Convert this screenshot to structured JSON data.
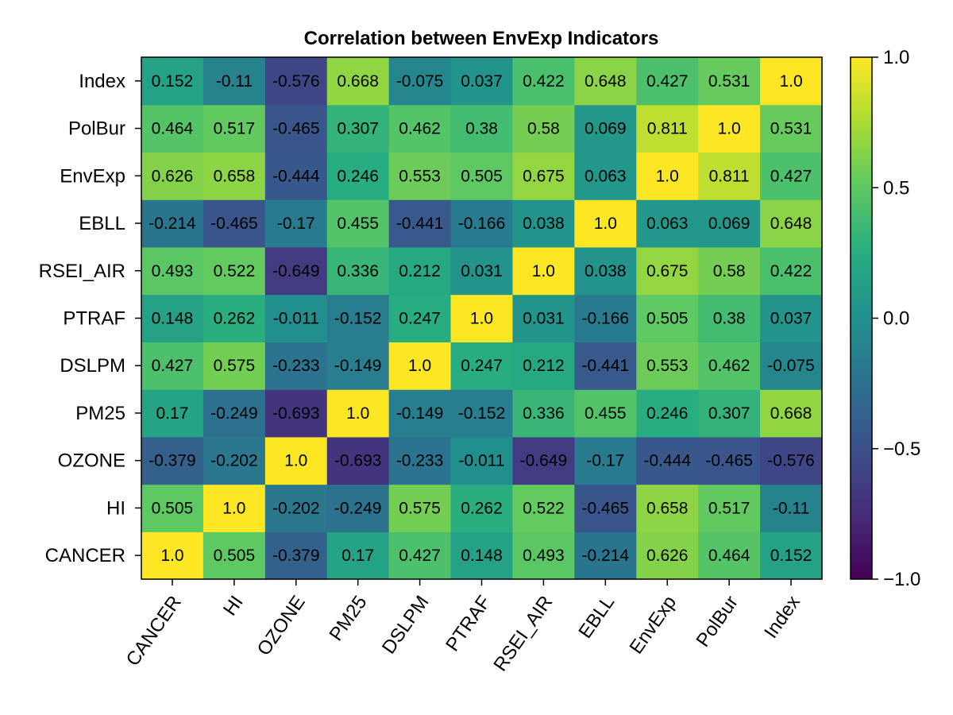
{
  "chart_data": {
    "type": "heatmap",
    "title": "Correlation between EnvExp Indicators",
    "categories": [
      "CANCER",
      "HI",
      "OZONE",
      "PM25",
      "DSLPM",
      "PTRAF",
      "RSEI_AIR",
      "EBLL",
      "EnvExp",
      "PolBur",
      "Index"
    ],
    "matrix": [
      [
        "1.0",
        "0.505",
        "-0.379",
        "0.17",
        "0.427",
        "0.148",
        "0.493",
        "-0.214",
        "0.626",
        "0.464",
        "0.152"
      ],
      [
        "0.505",
        "1.0",
        "-0.202",
        "-0.249",
        "0.575",
        "0.262",
        "0.522",
        "-0.465",
        "0.658",
        "0.517",
        "-0.11"
      ],
      [
        "-0.379",
        "-0.202",
        "1.0",
        "-0.693",
        "-0.233",
        "-0.011",
        "-0.649",
        "-0.17",
        "-0.444",
        "-0.465",
        "-0.576"
      ],
      [
        "0.17",
        "-0.249",
        "-0.693",
        "1.0",
        "-0.149",
        "-0.152",
        "0.336",
        "0.455",
        "0.246",
        "0.307",
        "0.668"
      ],
      [
        "0.427",
        "0.575",
        "-0.233",
        "-0.149",
        "1.0",
        "0.247",
        "0.212",
        "-0.441",
        "0.553",
        "0.462",
        "-0.075"
      ],
      [
        "0.148",
        "0.262",
        "-0.011",
        "-0.152",
        "0.247",
        "1.0",
        "0.031",
        "-0.166",
        "0.505",
        "0.38",
        "0.037"
      ],
      [
        "0.493",
        "0.522",
        "-0.649",
        "0.336",
        "0.212",
        "0.031",
        "1.0",
        "0.038",
        "0.675",
        "0.58",
        "0.422"
      ],
      [
        "-0.214",
        "-0.465",
        "-0.17",
        "0.455",
        "-0.441",
        "-0.166",
        "0.038",
        "1.0",
        "0.063",
        "0.069",
        "0.648"
      ],
      [
        "0.626",
        "0.658",
        "-0.444",
        "0.246",
        "0.553",
        "0.505",
        "0.675",
        "0.063",
        "1.0",
        "0.811",
        "0.427"
      ],
      [
        "0.464",
        "0.517",
        "-0.465",
        "0.307",
        "0.462",
        "0.38",
        "0.58",
        "0.069",
        "0.811",
        "1.0",
        "0.531"
      ],
      [
        "0.152",
        "-0.11",
        "-0.576",
        "0.668",
        "-0.075",
        "0.037",
        "0.422",
        "0.648",
        "0.427",
        "0.531",
        "1.0"
      ]
    ],
    "colorbar": {
      "colormap": "viridis",
      "range": [
        -1.0,
        1.0
      ],
      "ticks": [
        1.0,
        0.5,
        0.0,
        -0.5,
        -1.0
      ],
      "tick_labels": [
        "1.0",
        "0.5",
        "0.0",
        "−0.5",
        "−1.0"
      ]
    },
    "grid": false,
    "x_tick_rotation": "diagonal"
  }
}
